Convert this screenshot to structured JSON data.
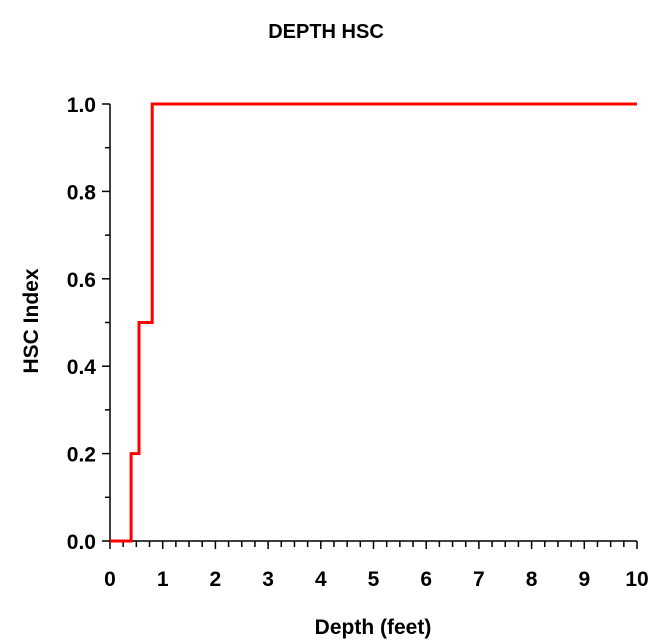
{
  "chart_data": {
    "type": "line",
    "title": "DEPTH HSC",
    "xlabel": "Depth (feet)",
    "ylabel": "HSC Index",
    "xlim": [
      0,
      10
    ],
    "ylim": [
      0,
      1.0
    ],
    "xticks": [
      0,
      1,
      2,
      3,
      4,
      5,
      6,
      7,
      8,
      9,
      10
    ],
    "yticks": [
      0.0,
      0.2,
      0.4,
      0.6,
      0.8,
      1.0
    ],
    "xtick_labels": [
      "0",
      "1",
      "2",
      "3",
      "4",
      "5",
      "6",
      "7",
      "8",
      "9",
      "10"
    ],
    "ytick_labels": [
      "0.0",
      "0.2",
      "0.4",
      "0.6",
      "0.8",
      "1.0"
    ],
    "x_minor_step": 0.25,
    "y_minor_step": 0.1,
    "grid": false,
    "legend": "none",
    "series": [
      {
        "color": "#ff0000",
        "x": [
          0,
          0.4,
          0.4,
          0.55,
          0.55,
          0.8,
          0.8,
          10
        ],
        "y": [
          0,
          0,
          0.2,
          0.2,
          0.5,
          0.5,
          1.0,
          1.0
        ]
      }
    ]
  }
}
